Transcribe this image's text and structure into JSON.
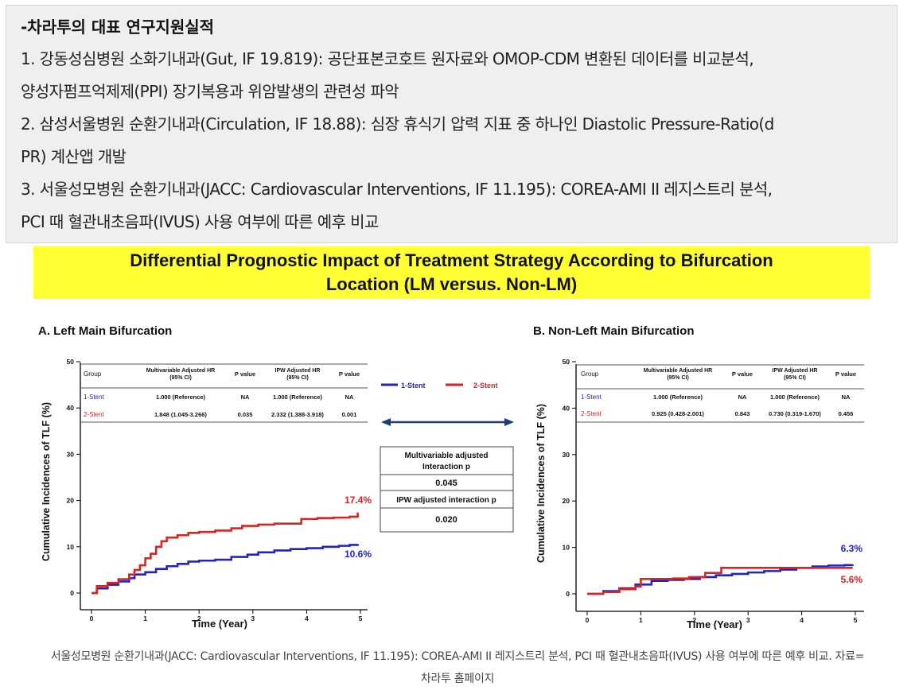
{
  "article": {
    "heading": "-차라투의 대표 연구지원실적",
    "lines": [
      "1. 강동성심병원 소화기내과(Gut, IF 19.819): 공단표본코호트 원자료와 OMOP-CDM 변환된 데이터를 비교분석,",
      "양성자펌프억제제(PPI) 장기복용과 위암발생의 관련성 파악",
      "2. 삼성서울병원 순환기내과(Circulation, IF 18.88): 심장 휴식기 압력 지표 중 하나인 Diastolic Pressure-Ratio(d",
      "PR) 계산앱 개발",
      "3. 서울성모병원 순환기내과(JACC: Cardiovascular Interventions, IF 11.195): COREA-AMI II 레지스트리 분석,",
      "PCI 때 혈관내초음파(IVUS) 사용 여부에 따른 예후 비교"
    ]
  },
  "figure": {
    "title_line1": "Differential Prognostic Impact of Treatment Strategy According to Bifurcation",
    "title_line2": "Location (LM versus. Non-LM)",
    "legend": [
      {
        "name": "1-Stent",
        "color": "#2222cc"
      },
      {
        "name": "2-Stent",
        "color": "#dd2222"
      }
    ],
    "interaction_box": {
      "label1_line1": "Multivariable adjusted",
      "label1_line2": "Interaction p",
      "value1": "0.045",
      "label2": "IPW adjusted interaction p",
      "value2": "0.020"
    },
    "table_headers": {
      "group": "Group",
      "mv_line1": "Multivariable Adjusted HR",
      "mv_line2": "(95% CI)",
      "p1": "P value",
      "ipw_line1": "IPW Adjusted HR",
      "ipw_line2": "(95% CI)",
      "p2": "P value"
    }
  },
  "chart_data": [
    {
      "type": "line",
      "title": "A. Left Main Bifurcation",
      "xlabel": "Time (Year)",
      "ylabel": "Cumulative Incidences of TLF (%)",
      "xlim": [
        0,
        5
      ],
      "ylim": [
        0,
        50
      ],
      "xticks": [
        0,
        1,
        2,
        3,
        4,
        5
      ],
      "yticks": [
        0,
        10,
        20,
        30,
        40,
        50
      ],
      "table": {
        "rows": [
          {
            "group": "1-Stent",
            "mv": "1.000 (Reference)",
            "p1": "NA",
            "ipw": "1.000 (Reference)",
            "p2": "NA"
          },
          {
            "group": "2-Stent",
            "mv": "1.848 (1.045-3.266)",
            "p1": "0.035",
            "ipw": "2.332 (1.388-3.918)",
            "p2": "0.001"
          }
        ]
      },
      "series": [
        {
          "name": "1-Stent",
          "end_label": "10.6%",
          "x": [
            0,
            0.1,
            0.3,
            0.5,
            0.7,
            0.8,
            1.0,
            1.2,
            1.4,
            1.6,
            1.8,
            2.0,
            2.3,
            2.6,
            2.9,
            3.1,
            3.4,
            3.7,
            4.0,
            4.3,
            4.6,
            4.8,
            4.95
          ],
          "y": [
            0,
            1,
            1.8,
            2.5,
            3.2,
            4,
            4.5,
            5.2,
            5.8,
            6.3,
            6.8,
            7,
            7.2,
            7.8,
            8.3,
            8.8,
            9.2,
            9.5,
            9.7,
            10,
            10.2,
            10.4,
            10.6
          ]
        },
        {
          "name": "2-Stent",
          "end_label": "17.4%",
          "x": [
            0,
            0.1,
            0.3,
            0.5,
            0.7,
            0.8,
            0.9,
            1.0,
            1.1,
            1.2,
            1.3,
            1.4,
            1.6,
            1.8,
            2.0,
            2.3,
            2.6,
            2.8,
            3.1,
            3.4,
            3.7,
            3.9,
            4.2,
            4.5,
            4.8,
            4.95
          ],
          "y": [
            0,
            1.5,
            2.2,
            3,
            4,
            5,
            6,
            7.5,
            8.5,
            10,
            11.2,
            12,
            12.5,
            13,
            13.2,
            13.5,
            14,
            14.5,
            14.8,
            15,
            15,
            16,
            16.2,
            16.3,
            16.5,
            17.4
          ]
        }
      ]
    },
    {
      "type": "line",
      "title": "B. Non-Left Main Bifurcation",
      "xlabel": "Time (Year)",
      "ylabel": "Cumulative Incidences of TLF (%)",
      "xlim": [
        0,
        5
      ],
      "ylim": [
        0,
        50
      ],
      "xticks": [
        0,
        1,
        2,
        3,
        4,
        5
      ],
      "yticks": [
        0,
        10,
        20,
        30,
        40,
        50
      ],
      "table": {
        "rows": [
          {
            "group": "1-Stent",
            "mv": "1.000 (Reference)",
            "p1": "NA",
            "ipw": "1.000 (Reference)",
            "p2": "NA"
          },
          {
            "group": "2-Stent",
            "mv": "0.925 (0.428-2.001)",
            "p1": "0.843",
            "ipw": "0.730 (0.319-1.670)",
            "p2": "0.456"
          }
        ]
      },
      "series": [
        {
          "name": "1-Stent",
          "end_label": "6.3%",
          "x": [
            0,
            0.3,
            0.6,
            0.9,
            1.2,
            1.5,
            1.8,
            2.1,
            2.4,
            2.7,
            3.0,
            3.3,
            3.6,
            3.9,
            4.2,
            4.5,
            4.8,
            4.95
          ],
          "y": [
            0,
            0.6,
            1.2,
            2,
            2.8,
            3,
            3.2,
            3.6,
            4,
            4.3,
            4.6,
            4.9,
            5.2,
            5.6,
            5.9,
            6.1,
            6.2,
            6.3
          ]
        },
        {
          "name": "2-Stent",
          "end_label": "5.6%",
          "x": [
            0,
            0.3,
            0.6,
            0.9,
            1.0,
            1.3,
            1.6,
            1.9,
            2.2,
            2.5,
            2.8,
            3.1,
            3.4,
            3.7,
            4.0,
            4.3,
            4.6,
            4.95
          ],
          "y": [
            0,
            0.4,
            1,
            1.6,
            3.2,
            3.2,
            3.3,
            3.6,
            4.5,
            5.6,
            5.6,
            5.6,
            5.6,
            5.6,
            5.6,
            5.6,
            5.6,
            5.6
          ]
        }
      ]
    }
  ],
  "caption": {
    "line1": "서울성모병원 순환기내과(JACC: Cardiovascular Interventions, IF 11.195): COREA-AMI II 레지스트리 분석, PCI 때 혈관내초음파(IVUS) 사용 여부에 따른 예후 비교. 자료=",
    "line2": "차라투 홈페이지"
  }
}
